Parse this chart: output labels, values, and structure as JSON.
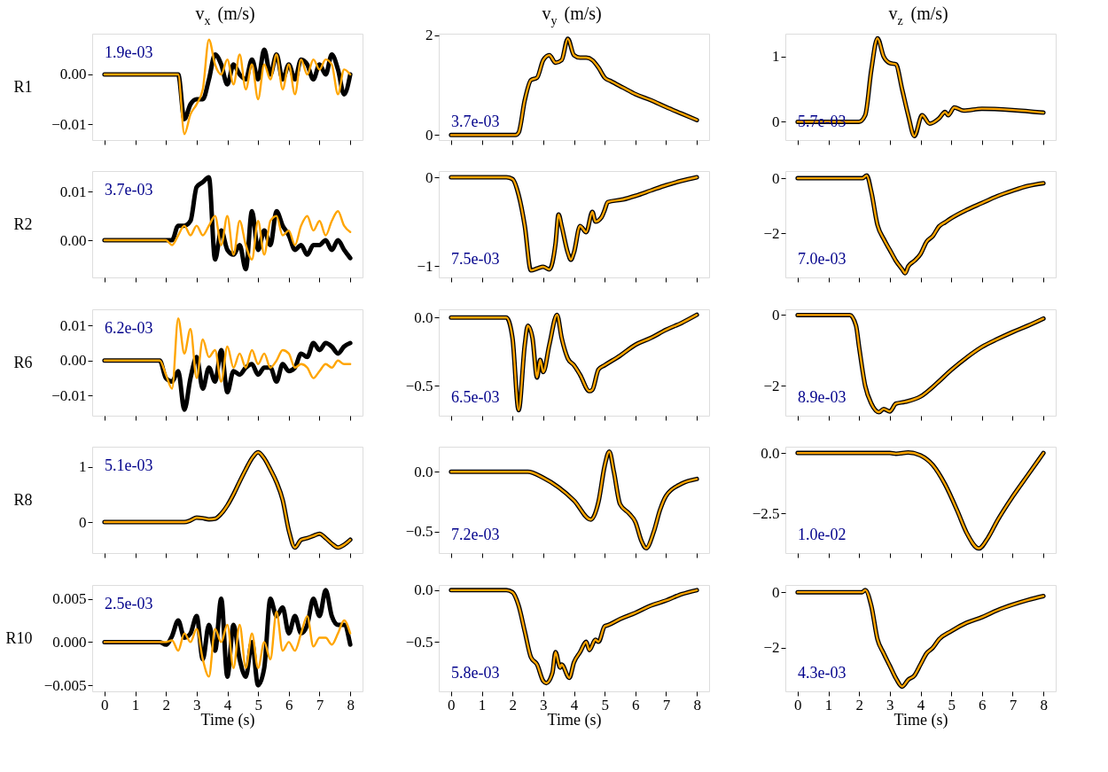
{
  "chart_data": [
    {
      "type": "line",
      "title": "v$_{x}$ (m/s)",
      "ylabel": "R1",
      "annotations": [
        "1.9e-03"
      ],
      "tick_labels": "y",
      "xlim": [
        -0.4,
        8.4
      ],
      "xticks": [
        0,
        1,
        2,
        3,
        4,
        5,
        6,
        7,
        8
      ],
      "ylim": [
        -0.0132,
        0.0082
      ],
      "yticks": [
        {
          "value": -0.01,
          "label": "−0.01"
        },
        {
          "value": 0,
          "label": "0.00"
        }
      ],
      "x": [
        0,
        1,
        1.8,
        2.0,
        2.2,
        2.4,
        2.6,
        2.8,
        3.0,
        3.2,
        3.4,
        3.6,
        3.8,
        4.0,
        4.2,
        4.4,
        4.6,
        4.8,
        5.0,
        5.2,
        5.4,
        5.6,
        5.8,
        6.0,
        6.2,
        6.4,
        6.6,
        6.8,
        7.0,
        7.2,
        7.4,
        7.6,
        7.8,
        8.0
      ],
      "series": [
        {
          "color": "#000000",
          "values": [
            0,
            0,
            0,
            0,
            0,
            0,
            -0.009,
            -0.006,
            -0.005,
            -0.005,
            -0.001,
            0.004,
            0.002,
            -0.002,
            0.002,
            0,
            -0.001,
            0.003,
            -0.001,
            0.005,
            0,
            0.004,
            -0.001,
            0.002,
            -0.001,
            0.003,
            0.002,
            -0.001,
            0.002,
            0,
            0.004,
            0.001,
            -0.004,
            0
          ]
        },
        {
          "color": "#ffa500",
          "values": [
            0,
            0,
            0,
            0,
            0,
            0,
            -0.012,
            -0.008,
            -0.006,
            -0.003,
            0.007,
            0.002,
            0,
            0.003,
            -0.002,
            0.004,
            -0.003,
            0.002,
            -0.005,
            0.002,
            -0.001,
            0.004,
            -0.003,
            0.002,
            -0.004,
            0.003,
            0,
            0.003,
            0.001,
            0.003,
            0.002,
            -0.004,
            0.001,
            0
          ]
        }
      ]
    },
    {
      "type": "line",
      "title": "v$_{y}$ (m/s)",
      "annotations": [
        "3.7e-03"
      ],
      "tick_labels": "y",
      "xlim": [
        -0.4,
        8.4
      ],
      "xticks": [
        0,
        1,
        2,
        3,
        4,
        5,
        6,
        7,
        8
      ],
      "ylim": [
        -0.1,
        2.03
      ],
      "yticks": [
        0,
        2
      ],
      "x": [
        0,
        2.1,
        2.2,
        2.4,
        2.6,
        2.8,
        3.0,
        3.2,
        3.4,
        3.6,
        3.8,
        4.0,
        4.2,
        4.4,
        4.6,
        4.8,
        5.0,
        5.2,
        5.6,
        6.0,
        6.5,
        7.0,
        7.5,
        8.0
      ],
      "series": [
        {
          "color": "#000000",
          "values": [
            0,
            0,
            0.05,
            0.7,
            1.1,
            1.15,
            1.5,
            1.6,
            1.45,
            1.5,
            1.93,
            1.6,
            1.55,
            1.55,
            1.5,
            1.35,
            1.15,
            1.08,
            0.95,
            0.82,
            0.7,
            0.56,
            0.43,
            0.3
          ]
        },
        {
          "color": "#ffa500",
          "values": [
            0,
            0,
            0.05,
            0.7,
            1.1,
            1.15,
            1.5,
            1.6,
            1.45,
            1.5,
            1.93,
            1.6,
            1.55,
            1.55,
            1.5,
            1.35,
            1.15,
            1.08,
            0.95,
            0.82,
            0.7,
            0.56,
            0.43,
            0.3
          ]
        }
      ]
    },
    {
      "type": "line",
      "title": "v$_{z}$ (m/s)",
      "annotations": [
        "5.7e-03"
      ],
      "tick_labels": "y",
      "xlim": [
        -0.4,
        8.4
      ],
      "xticks": [
        0,
        1,
        2,
        3,
        4,
        5,
        6,
        7,
        8
      ],
      "ylim": [
        -0.28,
        1.35
      ],
      "yticks": [
        0,
        1
      ],
      "x": [
        0,
        2.0,
        2.2,
        2.4,
        2.6,
        2.8,
        3.0,
        3.2,
        3.4,
        3.6,
        3.8,
        4.05,
        4.3,
        4.6,
        4.8,
        4.9,
        5.1,
        5.4,
        6.0,
        7.0,
        8.0
      ],
      "series": [
        {
          "color": "#000000",
          "values": [
            0,
            0,
            0.1,
            0.8,
            1.28,
            1.0,
            0.9,
            0.88,
            0.5,
            0.1,
            -0.22,
            0.1,
            -0.03,
            0.05,
            0.15,
            0.1,
            0.22,
            0.17,
            0.2,
            0.18,
            0.14
          ]
        },
        {
          "color": "#ffa500",
          "values": [
            0,
            0,
            0.1,
            0.8,
            1.28,
            1.0,
            0.9,
            0.88,
            0.5,
            0.1,
            -0.22,
            0.1,
            -0.03,
            0.05,
            0.15,
            0.1,
            0.22,
            0.17,
            0.2,
            0.18,
            0.14
          ]
        }
      ]
    },
    {
      "type": "line",
      "ylabel": "R2",
      "annotations": [
        "3.7e-03"
      ],
      "tick_labels": "y",
      "xlim": [
        -0.4,
        8.4
      ],
      "xticks": [
        0,
        1,
        2,
        3,
        4,
        5,
        6,
        7,
        8
      ],
      "ylim": [
        -0.0077,
        0.0143
      ],
      "yticks": [
        {
          "value": 0,
          "label": "0.00"
        },
        {
          "value": 0.01,
          "label": "0.01"
        }
      ],
      "x": [
        0,
        1,
        1.8,
        2.0,
        2.2,
        2.4,
        2.6,
        2.8,
        3.0,
        3.2,
        3.4,
        3.6,
        3.8,
        4.0,
        4.2,
        4.4,
        4.6,
        4.8,
        5.0,
        5.2,
        5.4,
        5.6,
        5.8,
        6.0,
        6.2,
        6.4,
        6.6,
        6.8,
        7.0,
        7.2,
        7.4,
        7.6,
        7.8,
        8.0
      ],
      "series": [
        {
          "color": "#000000",
          "values": [
            0,
            0,
            0,
            0,
            0,
            0.003,
            0.003,
            0.004,
            0.011,
            0.012,
            0.013,
            -0.004,
            0.002,
            -0.002,
            -0.003,
            -0.001,
            -0.006,
            0.006,
            -0.002,
            0.002,
            -0.001,
            0.006,
            0.003,
            0.001,
            -0.002,
            -0.001,
            -0.003,
            -0.001,
            -0.001,
            0,
            -0.002,
            0,
            -0.002,
            -0.0037
          ]
        },
        {
          "color": "#ffa500",
          "values": [
            0,
            0,
            0,
            0,
            -0.001,
            0.001,
            0.003,
            0.001,
            0.003,
            0.001,
            0.003,
            0.005,
            -0.001,
            0.005,
            -0.003,
            0.004,
            -0.001,
            -0.004,
            0.004,
            -0.003,
            0.004,
            0.005,
            0.001,
            0.002,
            -0.001,
            0.003,
            0.005,
            0.002,
            0.004,
            0.001,
            0.004,
            0.006,
            0.003,
            0.0017
          ]
        }
      ]
    },
    {
      "type": "line",
      "annotations": [
        "7.5e-03"
      ],
      "tick_labels": "y",
      "xlim": [
        -0.4,
        8.4
      ],
      "xticks": [
        0,
        1,
        2,
        3,
        4,
        5,
        6,
        7,
        8
      ],
      "ylim": [
        -1.13,
        0.07
      ],
      "yticks": [
        {
          "value": -1,
          "label": "−1"
        },
        0
      ],
      "x": [
        0,
        1.8,
        2.0,
        2.2,
        2.4,
        2.6,
        2.8,
        3.0,
        3.2,
        3.4,
        3.5,
        3.6,
        3.8,
        3.9,
        4.0,
        4.2,
        4.4,
        4.6,
        4.7,
        4.9,
        5.0,
        5.1,
        5.6,
        6.0,
        6.5,
        7.0,
        7.5,
        8.0
      ],
      "series": [
        {
          "color": "#000000",
          "values": [
            0,
            0,
            -0.02,
            -0.2,
            -0.55,
            -1.05,
            -1.03,
            -1.01,
            -1.04,
            -0.75,
            -0.42,
            -0.55,
            -0.85,
            -0.93,
            -0.85,
            -0.55,
            -0.62,
            -0.39,
            -0.5,
            -0.45,
            -0.37,
            -0.28,
            -0.25,
            -0.21,
            -0.15,
            -0.09,
            -0.04,
            0
          ]
        },
        {
          "color": "#ffa500",
          "values": [
            0,
            0,
            -0.02,
            -0.2,
            -0.55,
            -1.05,
            -1.03,
            -1.01,
            -1.04,
            -0.75,
            -0.42,
            -0.55,
            -0.85,
            -0.93,
            -0.85,
            -0.55,
            -0.62,
            -0.39,
            -0.5,
            -0.45,
            -0.37,
            -0.28,
            -0.25,
            -0.21,
            -0.15,
            -0.09,
            -0.04,
            0
          ]
        }
      ]
    },
    {
      "type": "line",
      "annotations": [
        "7.0e-03"
      ],
      "tick_labels": "y",
      "xlim": [
        -0.4,
        8.4
      ],
      "xticks": [
        0,
        1,
        2,
        3,
        4,
        5,
        6,
        7,
        8
      ],
      "ylim": [
        -3.6,
        0.26
      ],
      "yticks": [
        {
          "value": -2,
          "label": "−2"
        },
        0
      ],
      "x": [
        0,
        2.1,
        2.25,
        2.4,
        2.6,
        2.8,
        3.0,
        3.2,
        3.4,
        3.5,
        3.6,
        3.8,
        4.0,
        4.2,
        4.4,
        4.6,
        4.8,
        5.0,
        5.5,
        6.0,
        6.5,
        7.0,
        7.5,
        8.0
      ],
      "series": [
        {
          "color": "#000000",
          "values": [
            0,
            0,
            0.1,
            -0.5,
            -1.7,
            -2.2,
            -2.6,
            -3.0,
            -3.3,
            -3.45,
            -3.2,
            -3.0,
            -2.75,
            -2.3,
            -2.1,
            -1.75,
            -1.6,
            -1.45,
            -1.15,
            -0.9,
            -0.65,
            -0.45,
            -0.28,
            -0.18
          ]
        },
        {
          "color": "#ffa500",
          "values": [
            0,
            0,
            0.1,
            -0.5,
            -1.7,
            -2.2,
            -2.6,
            -3.0,
            -3.3,
            -3.45,
            -3.2,
            -3.0,
            -2.75,
            -2.3,
            -2.1,
            -1.75,
            -1.6,
            -1.45,
            -1.15,
            -0.9,
            -0.65,
            -0.45,
            -0.28,
            -0.18
          ]
        }
      ]
    },
    {
      "type": "line",
      "ylabel": "R6",
      "annotations": [
        "6.2e-03"
      ],
      "tick_labels": "y",
      "xlim": [
        -0.4,
        8.4
      ],
      "xticks": [
        0,
        1,
        2,
        3,
        4,
        5,
        6,
        7,
        8
      ],
      "ylim": [
        -0.0157,
        0.0146
      ],
      "yticks": [
        {
          "value": -0.01,
          "label": "−0.01"
        },
        {
          "value": 0,
          "label": "0.00"
        },
        {
          "value": 0.01,
          "label": "0.01"
        }
      ],
      "x": [
        0,
        1,
        1.8,
        2.0,
        2.2,
        2.4,
        2.6,
        2.8,
        3.0,
        3.2,
        3.4,
        3.6,
        3.8,
        4.0,
        4.2,
        4.4,
        4.6,
        4.8,
        5.0,
        5.2,
        5.4,
        5.6,
        5.8,
        6.0,
        6.2,
        6.4,
        6.6,
        6.8,
        7.0,
        7.2,
        7.4,
        7.6,
        7.8,
        8.0
      ],
      "series": [
        {
          "color": "#000000",
          "values": [
            0,
            0,
            0,
            -0.005,
            -0.006,
            -0.003,
            -0.014,
            -0.005,
            0.001,
            -0.008,
            -0.002,
            -0.006,
            0.003,
            -0.009,
            -0.003,
            -0.004,
            -0.002,
            -0.001,
            -0.004,
            -0.002,
            -0.002,
            -0.006,
            -0.001,
            -0.003,
            -0.002,
            0.002,
            0.001,
            0.005,
            0.003,
            0.005,
            0.004,
            0.002,
            0.004,
            0.005
          ]
        },
        {
          "color": "#ffa500",
          "values": [
            0,
            0,
            0,
            -0.004,
            -0.008,
            0.012,
            0.002,
            0.009,
            -0.005,
            0.006,
            0.001,
            0.003,
            -0.006,
            0.004,
            -0.002,
            0.002,
            -0.002,
            0.003,
            -0.001,
            0.002,
            -0.002,
            0,
            0.003,
            0.002,
            -0.002,
            -0.001,
            -0.002,
            -0.005,
            -0.003,
            -0.001,
            -0.002,
            0,
            -0.001,
            -0.001
          ]
        }
      ]
    },
    {
      "type": "line",
      "annotations": [
        "6.5e-03"
      ],
      "tick_labels": "y",
      "xlim": [
        -0.4,
        8.4
      ],
      "xticks": [
        0,
        1,
        2,
        3,
        4,
        5,
        6,
        7,
        8
      ],
      "ylim": [
        -0.72,
        0.06
      ],
      "yticks": [
        {
          "value": -0.5,
          "label": "−0.5"
        },
        {
          "value": 0,
          "label": "0.0"
        }
      ],
      "x": [
        0,
        1.8,
        2.0,
        2.2,
        2.4,
        2.5,
        2.65,
        2.8,
        2.9,
        3.0,
        3.2,
        3.45,
        3.6,
        3.8,
        4.0,
        4.2,
        4.5,
        4.6,
        4.8,
        5.0,
        5.5,
        6.0,
        6.5,
        7.0,
        7.5,
        8.0
      ],
      "series": [
        {
          "color": "#000000",
          "values": [
            0,
            0,
            -0.15,
            -0.68,
            -0.2,
            -0.06,
            -0.15,
            -0.44,
            -0.31,
            -0.4,
            -0.2,
            0.02,
            -0.15,
            -0.3,
            -0.35,
            -0.42,
            -0.54,
            -0.53,
            -0.38,
            -0.35,
            -0.28,
            -0.2,
            -0.15,
            -0.09,
            -0.04,
            0.02
          ]
        },
        {
          "color": "#ffa500",
          "values": [
            0,
            0,
            -0.15,
            -0.68,
            -0.2,
            -0.06,
            -0.15,
            -0.44,
            -0.31,
            -0.4,
            -0.2,
            0.02,
            -0.15,
            -0.3,
            -0.35,
            -0.42,
            -0.54,
            -0.53,
            -0.38,
            -0.35,
            -0.28,
            -0.2,
            -0.15,
            -0.09,
            -0.04,
            0.02
          ]
        }
      ]
    },
    {
      "type": "line",
      "annotations": [
        "8.9e-03"
      ],
      "tick_labels": "y",
      "xlim": [
        -0.4,
        8.4
      ],
      "xticks": [
        0,
        1,
        2,
        3,
        4,
        5,
        6,
        7,
        8
      ],
      "ylim": [
        -2.84,
        0.16
      ],
      "yticks": [
        {
          "value": -2,
          "label": "−2"
        },
        0
      ],
      "x": [
        0,
        1.7,
        1.9,
        2.0,
        2.2,
        2.4,
        2.65,
        2.8,
        3.0,
        3.2,
        3.5,
        4.0,
        4.5,
        5.0,
        5.5,
        6.0,
        6.5,
        7.0,
        7.5,
        8.0
      ],
      "series": [
        {
          "color": "#000000",
          "values": [
            0,
            0,
            -0.3,
            -0.9,
            -2.0,
            -2.5,
            -2.74,
            -2.65,
            -2.72,
            -2.5,
            -2.45,
            -2.3,
            -1.95,
            -1.55,
            -1.2,
            -0.9,
            -0.68,
            -0.48,
            -0.3,
            -0.1
          ]
        },
        {
          "color": "#ffa500",
          "values": [
            0,
            0,
            -0.3,
            -0.9,
            -2.0,
            -2.5,
            -2.74,
            -2.65,
            -2.72,
            -2.5,
            -2.45,
            -2.3,
            -1.95,
            -1.55,
            -1.2,
            -0.9,
            -0.68,
            -0.48,
            -0.3,
            -0.1
          ]
        }
      ]
    },
    {
      "type": "line",
      "ylabel": "R8",
      "annotations": [
        "5.1e-03"
      ],
      "tick_labels": "y",
      "xlim": [
        -0.4,
        8.4
      ],
      "xticks": [
        0,
        1,
        2,
        3,
        4,
        5,
        6,
        7,
        8
      ],
      "ylim": [
        -0.56,
        1.36
      ],
      "yticks": [
        0,
        1
      ],
      "x": [
        0,
        2.6,
        2.8,
        3.0,
        3.2,
        3.4,
        3.6,
        3.8,
        4.0,
        4.2,
        4.4,
        4.6,
        4.8,
        5.0,
        5.2,
        5.4,
        5.6,
        5.8,
        6.0,
        6.2,
        6.4,
        6.6,
        6.8,
        7.0,
        7.2,
        7.4,
        7.6,
        7.8,
        8.0
      ],
      "series": [
        {
          "color": "#000000",
          "values": [
            0,
            0,
            0.03,
            0.08,
            0.07,
            0.05,
            0.06,
            0.15,
            0.3,
            0.5,
            0.73,
            0.95,
            1.15,
            1.26,
            1.15,
            0.95,
            0.72,
            0.4,
            -0.15,
            -0.46,
            -0.32,
            -0.29,
            -0.25,
            -0.21,
            -0.29,
            -0.39,
            -0.46,
            -0.41,
            -0.32
          ]
        },
        {
          "color": "#ffa500",
          "values": [
            0,
            0,
            0.03,
            0.08,
            0.07,
            0.05,
            0.06,
            0.15,
            0.3,
            0.5,
            0.73,
            0.95,
            1.15,
            1.26,
            1.15,
            0.95,
            0.72,
            0.4,
            -0.15,
            -0.46,
            -0.32,
            -0.29,
            -0.25,
            -0.21,
            -0.29,
            -0.39,
            -0.46,
            -0.41,
            -0.32
          ]
        }
      ]
    },
    {
      "type": "line",
      "annotations": [
        "7.2e-03"
      ],
      "tick_labels": "y",
      "xlim": [
        -0.4,
        8.4
      ],
      "xticks": [
        0,
        1,
        2,
        3,
        4,
        5,
        6,
        7,
        8
      ],
      "ylim": [
        -0.68,
        0.21
      ],
      "yticks": [
        {
          "value": -0.5,
          "label": "−0.5"
        },
        {
          "value": 0,
          "label": "0.0"
        }
      ],
      "x": [
        0,
        2.5,
        3.0,
        3.5,
        4.0,
        4.55,
        4.8,
        5.0,
        5.15,
        5.3,
        5.5,
        5.8,
        6.0,
        6.2,
        6.35,
        6.6,
        6.8,
        7.0,
        7.5,
        8.0
      ],
      "series": [
        {
          "color": "#000000",
          "values": [
            0,
            0,
            -0.05,
            -0.13,
            -0.24,
            -0.4,
            -0.25,
            0.05,
            0.17,
            0.0,
            -0.27,
            -0.35,
            -0.42,
            -0.58,
            -0.64,
            -0.5,
            -0.32,
            -0.2,
            -0.1,
            -0.06
          ]
        },
        {
          "color": "#ffa500",
          "values": [
            0,
            0,
            -0.05,
            -0.13,
            -0.24,
            -0.4,
            -0.25,
            0.05,
            0.17,
            0.0,
            -0.27,
            -0.35,
            -0.42,
            -0.58,
            -0.64,
            -0.5,
            -0.32,
            -0.2,
            -0.1,
            -0.06
          ]
        }
      ]
    },
    {
      "type": "line",
      "annotations": [
        "1.0e-02"
      ],
      "tick_labels": "y",
      "xlim": [
        -0.4,
        8.4
      ],
      "xticks": [
        0,
        1,
        2,
        3,
        4,
        5,
        6,
        7,
        8
      ],
      "ylim": [
        -4.14,
        0.26
      ],
      "yticks": [
        {
          "value": -2.5,
          "label": "−2.5"
        },
        {
          "value": 0,
          "label": "0.0"
        }
      ],
      "x": [
        0,
        3.0,
        3.2,
        3.6,
        4.0,
        4.4,
        4.8,
        5.2,
        5.5,
        5.9,
        6.2,
        6.5,
        7.0,
        7.5,
        8.0
      ],
      "series": [
        {
          "color": "#000000",
          "values": [
            0,
            0,
            -0.03,
            0.02,
            -0.1,
            -0.5,
            -1.3,
            -2.4,
            -3.3,
            -3.95,
            -3.5,
            -2.8,
            -1.8,
            -0.9,
            0
          ]
        },
        {
          "color": "#ffa500",
          "values": [
            0,
            0,
            -0.03,
            0.02,
            -0.1,
            -0.5,
            -1.3,
            -2.4,
            -3.3,
            -3.95,
            -3.5,
            -2.8,
            -1.8,
            -0.9,
            0
          ]
        }
      ]
    },
    {
      "type": "line",
      "ylabel": "R10",
      "xlabel": "Time (s)",
      "annotations": [
        "2.5e-03"
      ],
      "xlim": [
        -0.4,
        8.4
      ],
      "xticks": [
        0,
        1,
        2,
        3,
        4,
        5,
        6,
        7,
        8
      ],
      "ylim": [
        -0.0057,
        0.0066
      ],
      "yticks": [
        {
          "value": -0.005,
          "label": "−0.005"
        },
        {
          "value": 0,
          "label": "0.000"
        },
        {
          "value": 0.005,
          "label": "0.005"
        }
      ],
      "x": [
        0,
        1,
        1.8,
        2.0,
        2.2,
        2.4,
        2.6,
        2.8,
        3.0,
        3.2,
        3.4,
        3.6,
        3.8,
        4.0,
        4.2,
        4.4,
        4.6,
        4.8,
        5.0,
        5.2,
        5.4,
        5.6,
        5.8,
        6.0,
        6.2,
        6.4,
        6.6,
        6.8,
        7.0,
        7.2,
        7.4,
        7.6,
        7.8,
        8.0
      ],
      "series": [
        {
          "color": "#000000",
          "values": [
            0,
            0,
            0,
            -0.0003,
            0.0007,
            0.0025,
            0.0005,
            0.001,
            0.003,
            -0.002,
            0.002,
            -0.001,
            0.005,
            -0.004,
            0.002,
            -0.002,
            -0.004,
            0,
            -0.005,
            -0.003,
            0.005,
            0.003,
            0.004,
            0.001,
            0.003,
            0.001,
            0.002,
            0.005,
            0.003,
            0.006,
            0.003,
            0.002,
            0.002,
            -0.0003
          ]
        },
        {
          "color": "#ffa500",
          "values": [
            0,
            0,
            0,
            0,
            0.0002,
            -0.001,
            0.001,
            0,
            0.0015,
            -0.002,
            -0.004,
            0.0015,
            0,
            0.002,
            -0.003,
            0.002,
            -0.003,
            0.001,
            -0.003,
            0,
            -0.002,
            0.0035,
            -0.001,
            0,
            -0.001,
            0.001,
            0.003,
            -0.0005,
            0.0005,
            0.0005,
            -0.0003,
            0.001,
            0.0025,
            0.001
          ]
        }
      ]
    },
    {
      "type": "line",
      "xlabel": "Time (s)",
      "annotations": [
        "5.8e-03"
      ],
      "xlim": [
        -0.4,
        8.4
      ],
      "xticks": [
        0,
        1,
        2,
        3,
        4,
        5,
        6,
        7,
        8
      ],
      "ylim": [
        -0.98,
        0.05
      ],
      "yticks": [
        {
          "value": -0.5,
          "label": "−0.5"
        },
        {
          "value": 0,
          "label": "0.0"
        }
      ],
      "x": [
        0,
        1.8,
        2.0,
        2.2,
        2.4,
        2.6,
        2.8,
        3.0,
        3.1,
        3.3,
        3.4,
        3.55,
        3.6,
        3.85,
        4.0,
        4.2,
        4.4,
        4.5,
        4.7,
        4.8,
        5.0,
        5.1,
        5.5,
        6.0,
        6.5,
        7.0,
        7.5,
        8.0
      ],
      "series": [
        {
          "color": "#000000",
          "values": [
            0,
            0,
            -0.02,
            -0.15,
            -0.4,
            -0.65,
            -0.72,
            -0.88,
            -0.9,
            -0.8,
            -0.6,
            -0.75,
            -0.72,
            -0.85,
            -0.7,
            -0.6,
            -0.5,
            -0.58,
            -0.48,
            -0.5,
            -0.35,
            -0.34,
            -0.28,
            -0.22,
            -0.15,
            -0.1,
            -0.04,
            0
          ]
        },
        {
          "color": "#ffa500",
          "values": [
            0,
            0,
            -0.02,
            -0.15,
            -0.4,
            -0.65,
            -0.72,
            -0.88,
            -0.9,
            -0.8,
            -0.6,
            -0.75,
            -0.72,
            -0.85,
            -0.7,
            -0.6,
            -0.5,
            -0.58,
            -0.48,
            -0.5,
            -0.35,
            -0.34,
            -0.28,
            -0.22,
            -0.15,
            -0.1,
            -0.04,
            0
          ]
        }
      ]
    },
    {
      "type": "line",
      "xlabel": "Time (s)",
      "annotations": [
        "4.3e-03"
      ],
      "xlim": [
        -0.4,
        8.4
      ],
      "xticks": [
        0,
        1,
        2,
        3,
        4,
        5,
        6,
        7,
        8
      ],
      "ylim": [
        -3.57,
        0.26
      ],
      "yticks": [
        {
          "value": -2,
          "label": "−2"
        },
        0
      ],
      "x": [
        0,
        2.1,
        2.2,
        2.4,
        2.6,
        2.8,
        3.0,
        3.2,
        3.4,
        3.6,
        3.8,
        4.0,
        4.2,
        4.4,
        4.6,
        5.0,
        5.5,
        6.0,
        6.5,
        7.0,
        7.5,
        8.0
      ],
      "series": [
        {
          "color": "#000000",
          "values": [
            0,
            0,
            0.08,
            -0.5,
            -1.7,
            -2.2,
            -2.65,
            -3.1,
            -3.4,
            -3.15,
            -3.0,
            -2.6,
            -2.2,
            -2.0,
            -1.7,
            -1.4,
            -1.1,
            -0.9,
            -0.65,
            -0.45,
            -0.28,
            -0.14
          ]
        },
        {
          "color": "#ffa500",
          "values": [
            0,
            0,
            0.08,
            -0.5,
            -1.7,
            -2.2,
            -2.65,
            -3.1,
            -3.4,
            -3.15,
            -3.0,
            -2.6,
            -2.2,
            -2.0,
            -1.7,
            -1.4,
            -1.1,
            -0.9,
            -0.65,
            -0.45,
            -0.28,
            -0.14
          ]
        }
      ]
    }
  ]
}
